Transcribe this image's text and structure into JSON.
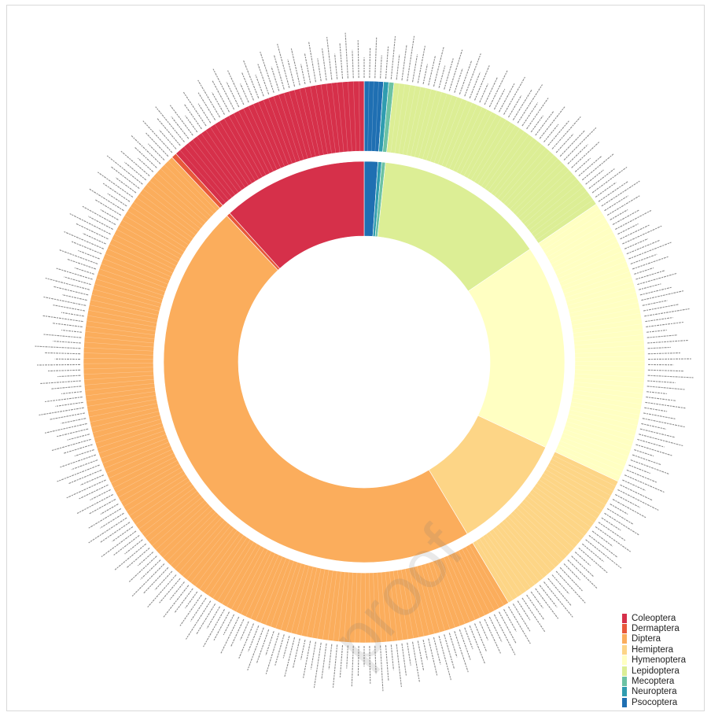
{
  "chart_data": {
    "type": "pie",
    "subtype": "two-ring sunburst",
    "title": "",
    "legend_position": "bottom-right",
    "rings": [
      "inner: order share",
      "outer: species within order"
    ],
    "categories": [
      "Psocoptera",
      "Neuroptera",
      "Mecoptera",
      "Lepidoptera",
      "Hymenoptera",
      "Hemiptera",
      "Diptera",
      "Dermaptera",
      "Coleoptera"
    ],
    "values": [
      1.1,
      0.3,
      0.3,
      13.8,
      16.5,
      9.4,
      46.6,
      0.3,
      11.7
    ],
    "colors": [
      "#1f6fb2",
      "#2f9cb0",
      "#6cc2a4",
      "#dcee95",
      "#ffffc2",
      "#fdd586",
      "#fbad5c",
      "#e8583a",
      "#d6304a"
    ],
    "legend": [
      "Coleoptera",
      "Dermaptera",
      "Diptera",
      "Hemiptera",
      "Hymenoptera",
      "Lepidoptera",
      "Mecoptera",
      "Neuroptera",
      "Psocoptera"
    ],
    "legend_colors": [
      "#d6304a",
      "#e8583a",
      "#fbad5c",
      "#fdd586",
      "#ffffc2",
      "#dcee95",
      "#6cc2a4",
      "#2f9cb0",
      "#1f6fb2"
    ],
    "outer_leaf_labels_note": ""
  },
  "watermark": "proof"
}
